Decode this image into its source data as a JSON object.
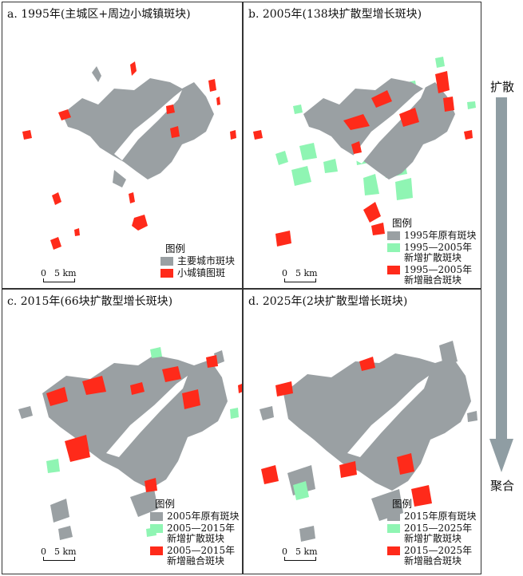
{
  "colors": {
    "urban": "#9aa0a3",
    "red": "#ff2a1a",
    "green": "#8ff5b3",
    "arrow": "#8f9da3"
  },
  "panels": [
    {
      "title": "a. 1995年(主城区+周边小城镇斑块)",
      "legend_title": "图例",
      "legend_items": [
        {
          "label": "主要城市斑块",
          "color": "#9aa0a3"
        },
        {
          "label": "小城镇图斑",
          "color": "#ff2a1a"
        }
      ],
      "scale": {
        "zero": "0",
        "dist": "5 km"
      }
    },
    {
      "title": "b. 2005年(138块扩散型增长斑块)",
      "legend_title": "图例",
      "legend_items": [
        {
          "label": "1995年原有斑块",
          "color": "#9aa0a3"
        },
        {
          "label": "1995—2005年\n新增扩散斑块",
          "color": "#8ff5b3"
        },
        {
          "label": "1995—2005年\n新增融合斑块",
          "color": "#ff2a1a"
        }
      ],
      "scale": {
        "zero": "0",
        "dist": "5 km"
      }
    },
    {
      "title": "c. 2015年(66块扩散型增长斑块)",
      "legend_title": "图例",
      "legend_items": [
        {
          "label": "2005年原有斑块",
          "color": "#9aa0a3"
        },
        {
          "label": "2005—2015年\n新增扩散斑块",
          "color": "#8ff5b3"
        },
        {
          "label": "2005—2015年\n新增融合斑块",
          "color": "#ff2a1a"
        }
      ],
      "scale": {
        "zero": "0",
        "dist": "5 km"
      }
    },
    {
      "title": "d. 2025年(2块扩散型增长斑块)",
      "legend_title": "图例",
      "legend_items": [
        {
          "label": "2015年原有斑块",
          "color": "#9aa0a3"
        },
        {
          "label": "2015—2025年\n新增扩散斑块",
          "color": "#8ff5b3"
        },
        {
          "label": "2015—2025年\n新增融合斑块",
          "color": "#ff2a1a"
        }
      ],
      "scale": {
        "zero": "0",
        "dist": "5 km"
      }
    }
  ],
  "arrow": {
    "top_label": "扩散",
    "bottom_label": "聚合"
  }
}
